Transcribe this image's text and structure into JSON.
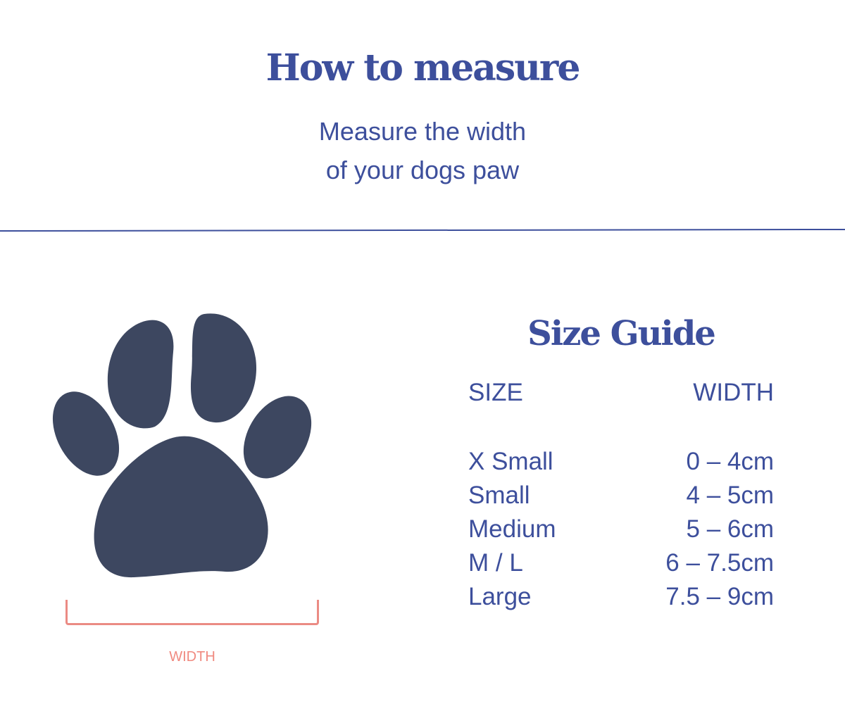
{
  "header": {
    "title": "How to measure",
    "subtitle_lines": [
      "Measure the width",
      "of your dogs paw"
    ]
  },
  "illustration": {
    "icon": "paw-icon",
    "measure_label": "WIDTH",
    "paw_color": "#3d4760",
    "measure_color": "#f08a80"
  },
  "size_guide": {
    "title": "Size Guide",
    "columns": [
      "SIZE",
      "WIDTH"
    ],
    "rows": [
      {
        "size": "X Small",
        "width": "0 – 4cm"
      },
      {
        "size": "Small",
        "width": "4 – 5cm"
      },
      {
        "size": "Medium",
        "width": "5 – 6cm"
      },
      {
        "size": "M / L",
        "width": "6 – 7.5cm"
      },
      {
        "size": "Large",
        "width": "7.5 – 9cm"
      }
    ]
  },
  "colors": {
    "accent": "#3d4f9c"
  }
}
